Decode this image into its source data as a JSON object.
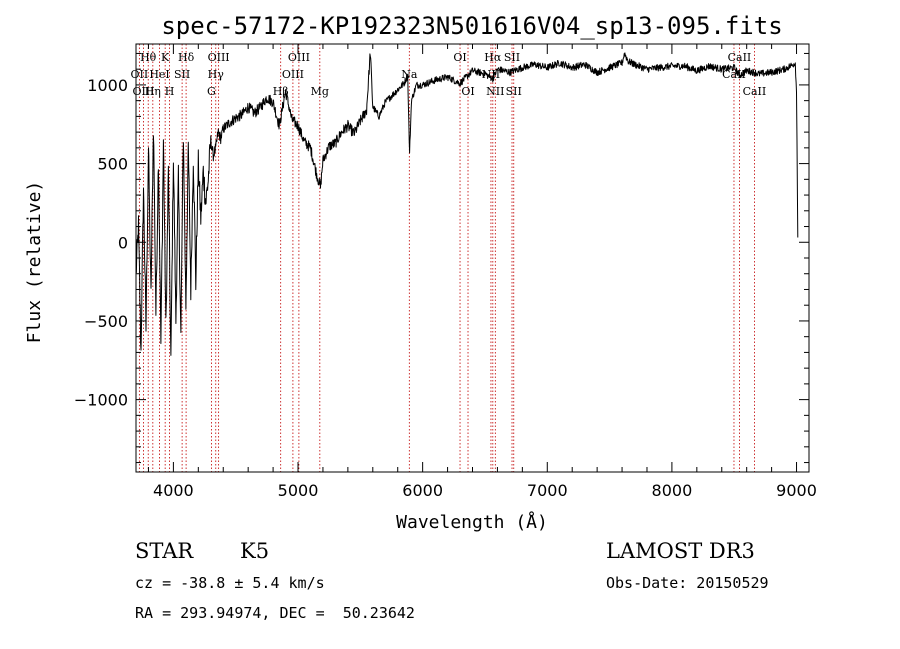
{
  "chart_data": {
    "type": "line",
    "title": "spec-57172-KP192323N501616V04_sp13-095.fits",
    "xlabel": "Wavelength (Å)",
    "ylabel": "Flux (relative)",
    "xlim": [
      3700,
      9100
    ],
    "ylim": [
      -1460,
      1260
    ],
    "x_ticks": [
      4000,
      5000,
      6000,
      7000,
      8000,
      9000
    ],
    "y_ticks": [
      -1000,
      -500,
      0,
      500,
      1000
    ],
    "grid": false,
    "series": [
      {
        "name": "spectrum",
        "x": [
          3700,
          3720,
          3740,
          3760,
          3780,
          3800,
          3820,
          3840,
          3860,
          3880,
          3900,
          3920,
          3940,
          3960,
          3980,
          4000,
          4020,
          4040,
          4060,
          4080,
          4100,
          4120,
          4140,
          4160,
          4180,
          4200,
          4220,
          4240,
          4260,
          4280,
          4300,
          4320,
          4340,
          4360,
          4380,
          4400,
          4450,
          4500,
          4550,
          4600,
          4650,
          4700,
          4750,
          4800,
          4850,
          4900,
          4950,
          5000,
          5050,
          5100,
          5150,
          5180,
          5200,
          5250,
          5300,
          5350,
          5400,
          5450,
          5500,
          5550,
          5580,
          5600,
          5650,
          5700,
          5750,
          5800,
          5850,
          5880,
          5895,
          5910,
          5950,
          6000,
          6100,
          6200,
          6300,
          6400,
          6500,
          6563,
          6600,
          6700,
          6800,
          6900,
          7000,
          7100,
          7200,
          7300,
          7400,
          7500,
          7600,
          7620,
          7650,
          7700,
          7800,
          7900,
          8000,
          8100,
          8200,
          8300,
          8400,
          8500,
          8542,
          8600,
          8662,
          8700,
          8800,
          8900,
          8950,
          8990,
          9000,
          9010
        ],
        "y": [
          -200,
          100,
          -700,
          350,
          -550,
          600,
          -350,
          750,
          -450,
          550,
          -650,
          650,
          -550,
          450,
          -750,
          550,
          -500,
          400,
          -600,
          700,
          -400,
          600,
          -300,
          550,
          -250,
          500,
          150,
          450,
          250,
          400,
          650,
          550,
          600,
          700,
          660,
          720,
          760,
          790,
          810,
          860,
          820,
          860,
          920,
          890,
          740,
          960,
          780,
          740,
          640,
          600,
          430,
          350,
          520,
          610,
          630,
          700,
          740,
          690,
          770,
          840,
          1210,
          860,
          800,
          890,
          930,
          970,
          1010,
          1060,
          560,
          900,
          1000,
          1000,
          1030,
          1050,
          1010,
          1090,
          1070,
          1040,
          1100,
          1080,
          1110,
          1130,
          1110,
          1140,
          1110,
          1130,
          1080,
          1110,
          1140,
          1200,
          1150,
          1130,
          1100,
          1110,
          1120,
          1120,
          1090,
          1120,
          1100,
          1110,
          1060,
          1090,
          1080,
          1070,
          1080,
          1100,
          1120,
          1140,
          950,
          30
        ]
      }
    ],
    "line_labels": [
      {
        "name": "Hθ",
        "x": 3798,
        "row": 1
      },
      {
        "name": "OII",
        "x": 3727,
        "row": 2
      },
      {
        "name": "OIII",
        "x": 3760,
        "row": 3
      },
      {
        "name": "K",
        "x": 3934,
        "row": 1
      },
      {
        "name": "H",
        "x": 3969,
        "row": 3
      },
      {
        "name": "HeI",
        "x": 3889,
        "row": 2
      },
      {
        "name": "Hη",
        "x": 3835,
        "row": 3
      },
      {
        "name": "SII",
        "x": 4070,
        "row": 2
      },
      {
        "name": "Hδ",
        "x": 4102,
        "row": 1
      },
      {
        "name": "OIII",
        "x": 4363,
        "row": 1
      },
      {
        "name": "Hγ",
        "x": 4340,
        "row": 2
      },
      {
        "name": "G",
        "x": 4305,
        "row": 3
      },
      {
        "name": "Hβ",
        "x": 4861,
        "row": 3
      },
      {
        "name": "OIII",
        "x": 5007,
        "row": 1
      },
      {
        "name": "OIII",
        "x": 4959,
        "row": 2
      },
      {
        "name": "Mg",
        "x": 5175,
        "row": 3
      },
      {
        "name": "Na",
        "x": 5893,
        "row": 2
      },
      {
        "name": "OI",
        "x": 6300,
        "row": 1
      },
      {
        "name": "OI",
        "x": 6364,
        "row": 3
      },
      {
        "name": "Hα",
        "x": 6563,
        "row": 1
      },
      {
        "name": "SII",
        "x": 6717,
        "row": 1
      },
      {
        "name": "NII",
        "x": 6548,
        "row": 2
      },
      {
        "name": "NII",
        "x": 6583,
        "row": 3
      },
      {
        "name": "SII",
        "x": 6731,
        "row": 3
      },
      {
        "name": "CaII",
        "x": 8542,
        "row": 1
      },
      {
        "name": "CaII",
        "x": 8498,
        "row": 2
      },
      {
        "name": "CaII",
        "x": 8662,
        "row": 3
      }
    ],
    "line_markers": [
      3727,
      3760,
      3798,
      3835,
      3889,
      3934,
      3969,
      4070,
      4102,
      4305,
      4340,
      4363,
      4861,
      4959,
      5007,
      5175,
      5893,
      6300,
      6364,
      6548,
      6563,
      6583,
      6717,
      6731,
      8498,
      8542,
      8662
    ]
  },
  "info": {
    "class": "STAR",
    "subclass": "K5",
    "survey": "LAMOST DR3",
    "cz": "cz = -38.8 ± 5.4 km/s",
    "obs_date": "Obs-Date: 20150529",
    "coords": "RA = 293.94974, DEC =  50.23642"
  }
}
